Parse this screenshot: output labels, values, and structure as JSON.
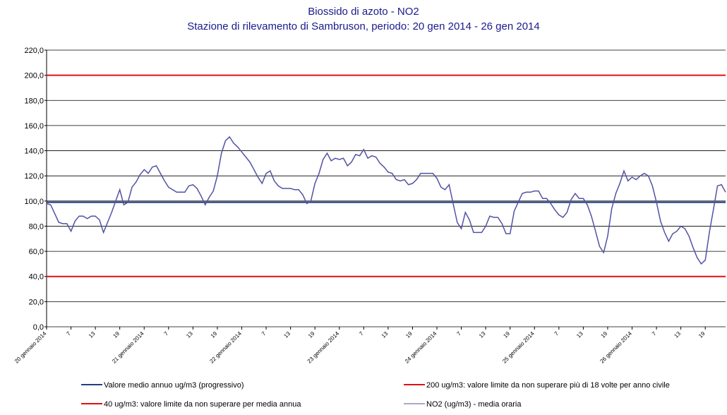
{
  "chart_data": {
    "type": "line",
    "title": "Biossido di azoto - NO2",
    "subtitle": "Stazione di rilevamento di Sambruson, periodo: 20 gen 2014 - 26 gen 2014",
    "categories": [
      "20 gennaio 2014",
      null,
      null,
      null,
      null,
      null,
      "7",
      null,
      null,
      null,
      null,
      null,
      "13",
      null,
      null,
      null,
      null,
      null,
      "19",
      null,
      null,
      null,
      null,
      null,
      "21 gennaio 2014",
      null,
      null,
      null,
      null,
      null,
      "7",
      null,
      null,
      null,
      null,
      null,
      "13",
      null,
      null,
      null,
      null,
      null,
      "19",
      null,
      null,
      null,
      null,
      null,
      "22 gennaio 2014",
      null,
      null,
      null,
      null,
      null,
      "7",
      null,
      null,
      null,
      null,
      null,
      "13",
      null,
      null,
      null,
      null,
      null,
      "19",
      null,
      null,
      null,
      null,
      null,
      "23 gennaio 2014",
      null,
      null,
      null,
      null,
      null,
      "7",
      null,
      null,
      null,
      null,
      null,
      "13",
      null,
      null,
      null,
      null,
      null,
      "19",
      null,
      null,
      null,
      null,
      null,
      "24 gennaio 2014",
      null,
      null,
      null,
      null,
      null,
      "7",
      null,
      null,
      null,
      null,
      null,
      "13",
      null,
      null,
      null,
      null,
      null,
      "19",
      null,
      null,
      null,
      null,
      null,
      "25 gennaio 2014",
      null,
      null,
      null,
      null,
      null,
      "7",
      null,
      null,
      null,
      null,
      null,
      "13",
      null,
      null,
      null,
      null,
      null,
      "19",
      null,
      null,
      null,
      null,
      null,
      "26 gennaio 2014",
      null,
      null,
      null,
      null,
      null,
      "7",
      null,
      null,
      null,
      null,
      null,
      "13",
      null,
      null,
      null,
      null,
      null,
      "19",
      null,
      null,
      null,
      null,
      null
    ],
    "series": [
      {
        "name": "NO2 (ug/m3)  - media oraria",
        "color": "#5252a3",
        "values": [
          98,
          97,
          90,
          83,
          82,
          82,
          76,
          84,
          88,
          88,
          86,
          88,
          88,
          85,
          75,
          83,
          91,
          100,
          109,
          97,
          99,
          111,
          115,
          121,
          125,
          122,
          127,
          128,
          122,
          116,
          111,
          109,
          107,
          107,
          107,
          112,
          113,
          110,
          104,
          97,
          103,
          108,
          120,
          138,
          148,
          151,
          146,
          143,
          139,
          135,
          131,
          125,
          119,
          114,
          122,
          124,
          116,
          112,
          110,
          110,
          110,
          109,
          109,
          105,
          98,
          100,
          114,
          122,
          133,
          138,
          132,
          134,
          133,
          134,
          128,
          131,
          137,
          136,
          141,
          134,
          136,
          135,
          130,
          127,
          123,
          122,
          117,
          116,
          117,
          113,
          114,
          117,
          122,
          122,
          122,
          122,
          118,
          111,
          109,
          113,
          98,
          83,
          78,
          91,
          85,
          75,
          75,
          75,
          80,
          88,
          87,
          87,
          82,
          74,
          74,
          92,
          99,
          106,
          107,
          107,
          108,
          108,
          102,
          102,
          98,
          93,
          89,
          87,
          91,
          101,
          106,
          102,
          102,
          97,
          88,
          76,
          64,
          59,
          72,
          94,
          106,
          114,
          124,
          116,
          119,
          117,
          120,
          122,
          120,
          112,
          99,
          84,
          75,
          68,
          74,
          76,
          80,
          78,
          72,
          63,
          55,
          50,
          53,
          75,
          93,
          112,
          113,
          107
        ]
      }
    ],
    "reference_lines": [
      {
        "name": "Valore medio annuo ug/m3 (progressivo)",
        "color": "#1f3f7f",
        "value": 99
      },
      {
        "name": "200 ug/m3: valore limite da non superare più di 18 volte per anno civile",
        "color": "#e01010",
        "value": 200
      },
      {
        "name": "40 ug/m3: valore limite da non superare per media annua",
        "color": "#e01010",
        "value": 40
      }
    ],
    "ylim": [
      0,
      220
    ],
    "yticks": [
      {
        "value": 0,
        "label": "0,0"
      },
      {
        "value": 20,
        "label": "20,0"
      },
      {
        "value": 40,
        "label": "40,0"
      },
      {
        "value": 60,
        "label": "60,0"
      },
      {
        "value": 80,
        "label": "80,0"
      },
      {
        "value": 100,
        "label": "100,0"
      },
      {
        "value": 120,
        "label": "120,0"
      },
      {
        "value": 140,
        "label": "140,0"
      },
      {
        "value": 160,
        "label": "160,0"
      },
      {
        "value": 180,
        "label": "180,0"
      },
      {
        "value": 200,
        "label": "200,0"
      },
      {
        "value": 220,
        "label": "220,0"
      }
    ],
    "grid": true
  }
}
